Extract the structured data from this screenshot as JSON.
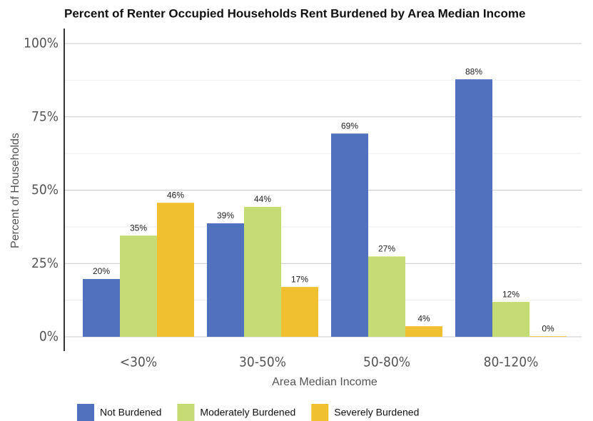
{
  "chart_data": {
    "type": "bar",
    "title": "Percent of Renter Occupied Households Rent Burdened by Area Median Income",
    "x_label": "Area Median Income",
    "y_label": "Percent of Households",
    "categories": [
      "<30%",
      "30-50%",
      "50-80%",
      "80-120%"
    ],
    "series": [
      {
        "name": "Not Burdened",
        "color": "#5072be",
        "values": [
          19.7,
          38.7,
          69.3,
          87.8
        ],
        "value_labels": [
          "20%",
          "39%",
          "69%",
          "88%"
        ]
      },
      {
        "name": "Moderately Burdened",
        "color": "#c5dc74",
        "values": [
          34.5,
          44.3,
          27.4,
          11.9
        ],
        "value_labels": [
          "35%",
          "44%",
          "27%",
          "12%"
        ]
      },
      {
        "name": "Severely Burdened",
        "color": "#f0c030",
        "values": [
          45.7,
          17.0,
          3.6,
          0.2
        ],
        "value_labels": [
          "46%",
          "17%",
          "4%",
          "0%"
        ]
      }
    ],
    "ylim": [
      0,
      100
    ],
    "yticks": [
      {
        "value": 0,
        "label": "0%"
      },
      {
        "value": 25,
        "label": "25%"
      },
      {
        "value": 50,
        "label": "50%"
      },
      {
        "value": 75,
        "label": "75%"
      },
      {
        "value": 100,
        "label": "100%"
      }
    ],
    "minor_yticks": [
      12.5,
      37.5,
      62.5,
      87.5
    ],
    "grid": true,
    "legend": "bottom-left"
  }
}
